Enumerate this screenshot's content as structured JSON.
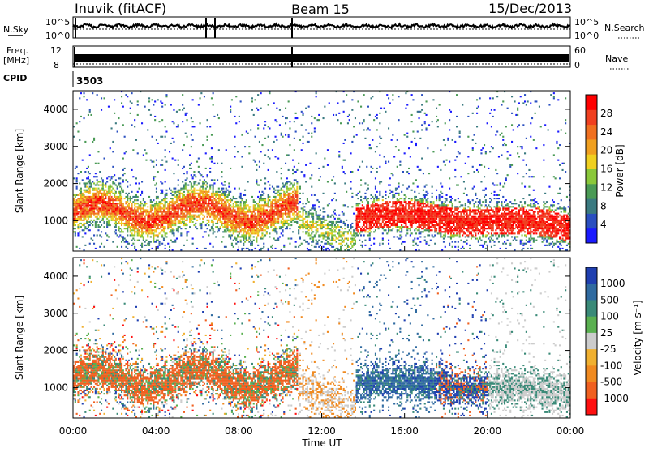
{
  "header": {
    "station": "Inuvik (fitACF)",
    "beam": "Beam 15",
    "date": "15/Dec/2013"
  },
  "top_panels": {
    "nsky_label": "N.Sky",
    "nsky_ticks": [
      "10^5",
      "10^0"
    ],
    "nsearch_label": "N.Search",
    "nsearch_ticks": [
      "10^5",
      "10^0"
    ],
    "freq_label": "Freq.",
    "freq_unit": "[MHz]",
    "freq_ticks": [
      "12",
      "8"
    ],
    "nave_label": "Nave",
    "nave_ticks": [
      "60",
      "0"
    ],
    "cpid_label": "CPID",
    "cpid_value": "3503"
  },
  "chart_data": [
    {
      "type": "heatmap",
      "title": "",
      "xlabel": "",
      "ylabel": "Slant Range [km]",
      "x_ticks": [
        "00:00",
        "04:00",
        "08:00",
        "12:00",
        "16:00",
        "20:00",
        "00:00"
      ],
      "y_ticks": [
        1000,
        2000,
        3000,
        4000
      ],
      "ylim": [
        180,
        4500
      ],
      "xlim_hours": [
        0,
        24
      ],
      "colorbar": {
        "label": "Power [dB]",
        "ticks": [
          4,
          8,
          12,
          16,
          20,
          24,
          28
        ],
        "range": [
          0,
          32
        ],
        "colors": [
          "#1a1aff",
          "#2a4fc0",
          "#3a7a80",
          "#4a9a55",
          "#8ac83a",
          "#f0d020",
          "#f0a020",
          "#f07020",
          "#f04020",
          "#ff0000"
        ]
      }
    },
    {
      "type": "heatmap",
      "title": "",
      "xlabel": "Time UT",
      "ylabel": "Slant Range [km]",
      "x_ticks": [
        "00:00",
        "04:00",
        "08:00",
        "12:00",
        "16:00",
        "20:00",
        "00:00"
      ],
      "y_ticks": [
        1000,
        2000,
        3000,
        4000
      ],
      "ylim": [
        180,
        4500
      ],
      "xlim_hours": [
        0,
        24
      ],
      "colorbar": {
        "label": "Velocity [m s⁻¹]",
        "ticks": [
          1000,
          500,
          100,
          25,
          -25,
          -100,
          -500,
          -1000
        ],
        "colors": [
          "#1f3fb0",
          "#2f6aa0",
          "#3a8a78",
          "#5ab050",
          "#cccccc",
          "#f0b030",
          "#f08a20",
          "#f06020",
          "#ff1010"
        ]
      }
    }
  ]
}
